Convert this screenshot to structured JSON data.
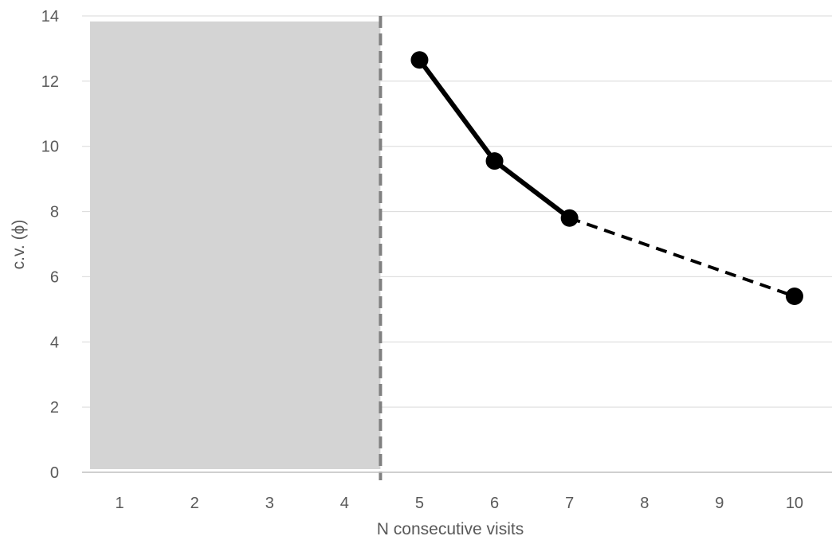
{
  "chart_data": {
    "type": "line",
    "title": "",
    "xlabel": "N consecutive visits",
    "ylabel": "c.v. (ϕ)",
    "categories": [
      "1",
      "2",
      "3",
      "4",
      "5",
      "6",
      "7",
      "8",
      "9",
      "10"
    ],
    "ylim": [
      0,
      14
    ],
    "yticks": [
      "0",
      "2",
      "4",
      "6",
      "8",
      "10",
      "12",
      "14"
    ],
    "grid": true,
    "legend": "none",
    "shaded_region": {
      "from_category": "1",
      "to_category": "4",
      "color": "#d4d4d4"
    },
    "threshold_line": {
      "after_category": "4",
      "style": "dashed",
      "color": "#808080"
    },
    "series": [
      {
        "values": [
          null,
          null,
          null,
          null,
          12.65,
          9.55,
          7.8,
          null,
          null,
          5.4
        ],
        "color": "#000000",
        "segment_styles": [
          "solid",
          "solid",
          "dashed"
        ]
      }
    ]
  }
}
